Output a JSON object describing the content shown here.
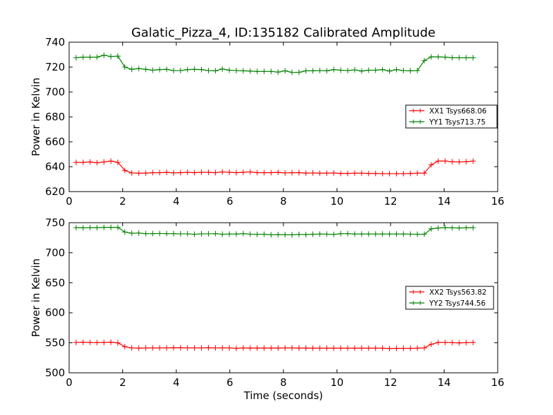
{
  "chart_data": {
    "type": "line",
    "title": "Galatic_Pizza_4, ID:135182 Calibrated Amplitude",
    "xlabel": "Time (seconds)",
    "colors": {
      "xx": "#ff0000",
      "yy": "#008000"
    },
    "x": [
      0.26,
      0.52,
      0.78,
      1.04,
      1.3,
      1.56,
      1.82,
      2.08,
      2.34,
      2.6,
      2.86,
      3.12,
      3.38,
      3.64,
      3.9,
      4.16,
      4.42,
      4.68,
      4.94,
      5.2,
      5.46,
      5.72,
      5.98,
      6.24,
      6.5,
      6.76,
      7.02,
      7.28,
      7.54,
      7.8,
      8.06,
      8.32,
      8.58,
      8.84,
      9.1,
      9.36,
      9.62,
      9.88,
      10.14,
      10.4,
      10.66,
      10.92,
      11.18,
      11.44,
      11.7,
      11.96,
      12.22,
      12.48,
      12.74,
      13.0,
      13.26,
      13.52,
      13.78,
      14.04,
      14.3,
      14.56,
      14.82,
      15.08
    ],
    "panels": [
      {
        "ylabel": "Power in Kelvin",
        "xlim": [
          0,
          16
        ],
        "ylim": [
          620,
          740
        ],
        "xticks": [
          "0",
          "2",
          "4",
          "6",
          "8",
          "10",
          "12",
          "14",
          "16"
        ],
        "yticks": [
          "620",
          "640",
          "660",
          "680",
          "700",
          "720",
          "740"
        ],
        "legend_position": "center-right",
        "series": [
          {
            "name": "XX1 Tsys668.06",
            "values": [
              643.5,
              643.5,
              643.8,
              643.2,
              643.8,
              644.5,
              643.5,
              637,
              635,
              634.8,
              634.8,
              635.2,
              635.2,
              635.5,
              635,
              635.2,
              635.5,
              635.2,
              635.5,
              635.5,
              635.2,
              635.8,
              635.5,
              635.2,
              635.5,
              635.8,
              635.2,
              635.2,
              635.2,
              635.5,
              635,
              635.2,
              635.2,
              634.8,
              635,
              634.8,
              634.8,
              635,
              634.6,
              634.6,
              634.8,
              634.8,
              634.6,
              634.6,
              634.4,
              634.4,
              634.4,
              634.4,
              634.6,
              634.8,
              634.8,
              641.5,
              644.5,
              644.5,
              644,
              643.8,
              644,
              644.5
            ]
          },
          {
            "name": "YY1 Tsys713.75",
            "values": [
              727.5,
              728,
              728,
              728,
              729.5,
              728.5,
              728.8,
              720,
              718.2,
              718.8,
              718.2,
              717.5,
              718,
              718.2,
              717.2,
              717.2,
              718,
              718.2,
              718,
              717.2,
              717,
              718.5,
              717.5,
              717.2,
              717,
              716.8,
              716.5,
              716.5,
              716.5,
              716,
              717,
              715.8,
              715.8,
              717,
              717,
              717.2,
              717,
              718,
              717.5,
              717.2,
              717.8,
              716.8,
              717.5,
              717.5,
              718,
              716.8,
              718,
              717.2,
              717,
              717.2,
              725.2,
              728.2,
              728.2,
              728,
              727.5,
              727.5,
              727.5,
              727.5
            ]
          }
        ]
      },
      {
        "ylabel": "Power in Kelvin",
        "xlim": [
          0,
          16
        ],
        "ylim": [
          500,
          750
        ],
        "xticks": [
          "0",
          "2",
          "4",
          "6",
          "8",
          "10",
          "12",
          "14",
          "16"
        ],
        "yticks": [
          "500",
          "550",
          "600",
          "650",
          "700",
          "750"
        ],
        "legend_position": "center-right",
        "series": [
          {
            "name": "XX2 Tsys563.82",
            "values": [
              550.5,
              550.8,
              550.5,
              550.2,
              550.5,
              551,
              549.8,
              543.5,
              541.5,
              541,
              541.5,
              541.5,
              541.5,
              541.5,
              541.8,
              541.8,
              541.5,
              541.5,
              541.5,
              541.8,
              541.5,
              541.5,
              541.5,
              540.8,
              541.5,
              541.2,
              541.2,
              541.2,
              541.2,
              541.2,
              541.5,
              541.5,
              541.2,
              541.2,
              541,
              541,
              541,
              541,
              541,
              541,
              541,
              541,
              541,
              541,
              541,
              540.5,
              540.8,
              540.8,
              540.8,
              541,
              541.5,
              547.5,
              550.5,
              550.5,
              550.2,
              549.8,
              550.2,
              550.5
            ]
          },
          {
            "name": "YY2 Tsys744.56",
            "values": [
              741.8,
              741.5,
              741.8,
              741.8,
              742.2,
              742.2,
              742.2,
              734.5,
              732.5,
              732.8,
              731.8,
              731.8,
              732.2,
              731.8,
              731.8,
              731.5,
              731.5,
              730.8,
              731.5,
              731.5,
              731.8,
              730.8,
              731.2,
              731.2,
              731.8,
              731,
              730.5,
              730.8,
              729.8,
              730.2,
              730,
              729.8,
              730.5,
              730.2,
              730.8,
              731.2,
              731,
              730.5,
              731.8,
              731.8,
              731.2,
              731.2,
              731.2,
              731.2,
              731.2,
              731.2,
              731.2,
              731.2,
              731,
              730.8,
              730.8,
              739.8,
              741.2,
              741.8,
              741.5,
              741.2,
              741.5,
              741.8
            ]
          }
        ]
      }
    ]
  }
}
